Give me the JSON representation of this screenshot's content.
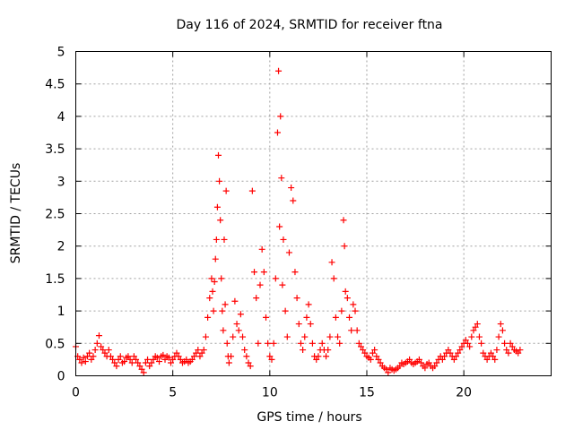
{
  "chart_data": {
    "type": "scatter",
    "title": "Day 116 of 2024, SRMTID for receiver ftna",
    "xlabel": "GPS time / hours",
    "ylabel": "SRMTID / TECUs",
    "xlim": [
      0,
      24.5
    ],
    "ylim": [
      0,
      5
    ],
    "xticks": [
      0,
      5,
      10,
      15,
      20
    ],
    "xtick_labels": [
      "0",
      "5",
      "10",
      "15",
      "20"
    ],
    "yticks": [
      0,
      0.5,
      1,
      1.5,
      2,
      2.5,
      3,
      3.5,
      4,
      4.5,
      5
    ],
    "ytick_labels": [
      "0",
      "0.5",
      "1",
      "1.5",
      "2",
      "2.5",
      "3",
      "3.5",
      "4",
      "4.5",
      "5"
    ],
    "grid": true,
    "marker": "plus",
    "color": "#ff0000",
    "series": [
      {
        "name": "SRMTID",
        "points": [
          [
            0.0,
            0.45
          ],
          [
            0.1,
            0.3
          ],
          [
            0.2,
            0.25
          ],
          [
            0.3,
            0.2
          ],
          [
            0.4,
            0.28
          ],
          [
            0.5,
            0.22
          ],
          [
            0.6,
            0.3
          ],
          [
            0.7,
            0.35
          ],
          [
            0.8,
            0.25
          ],
          [
            0.9,
            0.3
          ],
          [
            1.0,
            0.4
          ],
          [
            1.1,
            0.5
          ],
          [
            1.2,
            0.62
          ],
          [
            1.3,
            0.45
          ],
          [
            1.4,
            0.4
          ],
          [
            1.5,
            0.35
          ],
          [
            1.6,
            0.3
          ],
          [
            1.7,
            0.4
          ],
          [
            1.8,
            0.3
          ],
          [
            1.9,
            0.25
          ],
          [
            2.0,
            0.2
          ],
          [
            2.1,
            0.15
          ],
          [
            2.2,
            0.25
          ],
          [
            2.3,
            0.3
          ],
          [
            2.4,
            0.2
          ],
          [
            2.5,
            0.22
          ],
          [
            2.6,
            0.28
          ],
          [
            2.7,
            0.3
          ],
          [
            2.8,
            0.25
          ],
          [
            2.9,
            0.2
          ],
          [
            3.0,
            0.3
          ],
          [
            3.1,
            0.25
          ],
          [
            3.2,
            0.2
          ],
          [
            3.3,
            0.15
          ],
          [
            3.4,
            0.1
          ],
          [
            3.5,
            0.05
          ],
          [
            3.6,
            0.2
          ],
          [
            3.7,
            0.25
          ],
          [
            3.8,
            0.15
          ],
          [
            3.9,
            0.2
          ],
          [
            4.0,
            0.25
          ],
          [
            4.1,
            0.3
          ],
          [
            4.2,
            0.28
          ],
          [
            4.3,
            0.22
          ],
          [
            4.4,
            0.3
          ],
          [
            4.5,
            0.32
          ],
          [
            4.6,
            0.25
          ],
          [
            4.7,
            0.3
          ],
          [
            4.8,
            0.28
          ],
          [
            4.9,
            0.2
          ],
          [
            5.0,
            0.25
          ],
          [
            5.1,
            0.3
          ],
          [
            5.2,
            0.35
          ],
          [
            5.3,
            0.3
          ],
          [
            5.4,
            0.25
          ],
          [
            5.5,
            0.2
          ],
          [
            5.6,
            0.22
          ],
          [
            5.7,
            0.25
          ],
          [
            5.8,
            0.2
          ],
          [
            5.9,
            0.22
          ],
          [
            6.0,
            0.25
          ],
          [
            6.1,
            0.3
          ],
          [
            6.2,
            0.35
          ],
          [
            6.3,
            0.4
          ],
          [
            6.4,
            0.3
          ],
          [
            6.5,
            0.35
          ],
          [
            6.6,
            0.4
          ],
          [
            6.7,
            0.6
          ],
          [
            6.8,
            0.9
          ],
          [
            6.9,
            1.2
          ],
          [
            7.0,
            1.5
          ],
          [
            7.05,
            1.3
          ],
          [
            7.1,
            1.0
          ],
          [
            7.15,
            1.45
          ],
          [
            7.2,
            1.8
          ],
          [
            7.25,
            2.1
          ],
          [
            7.3,
            2.6
          ],
          [
            7.35,
            3.4
          ],
          [
            7.4,
            3.0
          ],
          [
            7.45,
            2.4
          ],
          [
            7.5,
            1.5
          ],
          [
            7.55,
            1.0
          ],
          [
            7.6,
            0.7
          ],
          [
            7.65,
            2.1
          ],
          [
            7.7,
            1.1
          ],
          [
            7.75,
            2.85
          ],
          [
            7.8,
            0.5
          ],
          [
            7.85,
            0.3
          ],
          [
            7.9,
            0.2
          ],
          [
            8.0,
            0.3
          ],
          [
            8.1,
            0.6
          ],
          [
            8.2,
            1.15
          ],
          [
            8.3,
            0.8
          ],
          [
            8.4,
            0.7
          ],
          [
            8.5,
            0.95
          ],
          [
            8.6,
            0.6
          ],
          [
            8.7,
            0.4
          ],
          [
            8.8,
            0.3
          ],
          [
            8.9,
            0.2
          ],
          [
            9.0,
            0.15
          ],
          [
            9.1,
            2.85
          ],
          [
            9.2,
            1.6
          ],
          [
            9.3,
            1.2
          ],
          [
            9.4,
            0.5
          ],
          [
            9.5,
            1.4
          ],
          [
            9.6,
            1.95
          ],
          [
            9.7,
            1.6
          ],
          [
            9.8,
            0.9
          ],
          [
            9.9,
            0.5
          ],
          [
            10.0,
            0.3
          ],
          [
            10.1,
            0.25
          ],
          [
            10.2,
            0.5
          ],
          [
            10.3,
            1.5
          ],
          [
            10.4,
            3.75
          ],
          [
            10.45,
            4.7
          ],
          [
            10.5,
            2.3
          ],
          [
            10.55,
            4.0
          ],
          [
            10.6,
            3.05
          ],
          [
            10.65,
            1.4
          ],
          [
            10.7,
            2.1
          ],
          [
            10.8,
            1.0
          ],
          [
            10.9,
            0.6
          ],
          [
            11.0,
            1.9
          ],
          [
            11.1,
            2.9
          ],
          [
            11.2,
            2.7
          ],
          [
            11.3,
            1.6
          ],
          [
            11.4,
            1.2
          ],
          [
            11.5,
            0.8
          ],
          [
            11.6,
            0.5
          ],
          [
            11.7,
            0.4
          ],
          [
            11.8,
            0.6
          ],
          [
            11.9,
            0.9
          ],
          [
            12.0,
            1.1
          ],
          [
            12.1,
            0.8
          ],
          [
            12.2,
            0.5
          ],
          [
            12.3,
            0.3
          ],
          [
            12.4,
            0.25
          ],
          [
            12.5,
            0.3
          ],
          [
            12.6,
            0.4
          ],
          [
            12.7,
            0.5
          ],
          [
            12.8,
            0.4
          ],
          [
            12.9,
            0.3
          ],
          [
            13.0,
            0.4
          ],
          [
            13.1,
            0.6
          ],
          [
            13.2,
            1.75
          ],
          [
            13.3,
            1.5
          ],
          [
            13.4,
            0.9
          ],
          [
            13.5,
            0.6
          ],
          [
            13.6,
            0.5
          ],
          [
            13.7,
            1.0
          ],
          [
            13.8,
            2.4
          ],
          [
            13.85,
            2.0
          ],
          [
            13.9,
            1.3
          ],
          [
            14.0,
            1.2
          ],
          [
            14.1,
            0.9
          ],
          [
            14.2,
            0.7
          ],
          [
            14.3,
            1.1
          ],
          [
            14.4,
            1.0
          ],
          [
            14.5,
            0.7
          ],
          [
            14.6,
            0.5
          ],
          [
            14.7,
            0.45
          ],
          [
            14.8,
            0.4
          ],
          [
            14.9,
            0.35
          ],
          [
            15.0,
            0.3
          ],
          [
            15.1,
            0.28
          ],
          [
            15.2,
            0.25
          ],
          [
            15.3,
            0.35
          ],
          [
            15.4,
            0.4
          ],
          [
            15.5,
            0.3
          ],
          [
            15.6,
            0.25
          ],
          [
            15.7,
            0.2
          ],
          [
            15.8,
            0.15
          ],
          [
            15.9,
            0.12
          ],
          [
            16.0,
            0.1
          ],
          [
            16.1,
            0.05
          ],
          [
            16.2,
            0.12
          ],
          [
            16.3,
            0.1
          ],
          [
            16.4,
            0.08
          ],
          [
            16.5,
            0.1
          ],
          [
            16.6,
            0.12
          ],
          [
            16.7,
            0.15
          ],
          [
            16.8,
            0.2
          ],
          [
            16.9,
            0.18
          ],
          [
            17.0,
            0.2
          ],
          [
            17.1,
            0.22
          ],
          [
            17.2,
            0.25
          ],
          [
            17.3,
            0.2
          ],
          [
            17.4,
            0.18
          ],
          [
            17.5,
            0.2
          ],
          [
            17.6,
            0.22
          ],
          [
            17.7,
            0.25
          ],
          [
            17.8,
            0.2
          ],
          [
            17.9,
            0.15
          ],
          [
            18.0,
            0.12
          ],
          [
            18.1,
            0.18
          ],
          [
            18.2,
            0.2
          ],
          [
            18.3,
            0.15
          ],
          [
            18.4,
            0.12
          ],
          [
            18.5,
            0.15
          ],
          [
            18.6,
            0.2
          ],
          [
            18.7,
            0.25
          ],
          [
            18.8,
            0.3
          ],
          [
            18.9,
            0.25
          ],
          [
            19.0,
            0.3
          ],
          [
            19.1,
            0.35
          ],
          [
            19.2,
            0.4
          ],
          [
            19.3,
            0.35
          ],
          [
            19.4,
            0.3
          ],
          [
            19.5,
            0.25
          ],
          [
            19.6,
            0.3
          ],
          [
            19.7,
            0.35
          ],
          [
            19.8,
            0.4
          ],
          [
            19.9,
            0.45
          ],
          [
            20.0,
            0.5
          ],
          [
            20.1,
            0.55
          ],
          [
            20.2,
            0.5
          ],
          [
            20.3,
            0.45
          ],
          [
            20.4,
            0.6
          ],
          [
            20.5,
            0.7
          ],
          [
            20.6,
            0.75
          ],
          [
            20.7,
            0.8
          ],
          [
            20.8,
            0.6
          ],
          [
            20.9,
            0.5
          ],
          [
            21.0,
            0.35
          ],
          [
            21.1,
            0.3
          ],
          [
            21.2,
            0.25
          ],
          [
            21.3,
            0.3
          ],
          [
            21.4,
            0.35
          ],
          [
            21.5,
            0.3
          ],
          [
            21.6,
            0.25
          ],
          [
            21.7,
            0.4
          ],
          [
            21.8,
            0.6
          ],
          [
            21.9,
            0.8
          ],
          [
            22.0,
            0.7
          ],
          [
            22.1,
            0.5
          ],
          [
            22.2,
            0.4
          ],
          [
            22.3,
            0.35
          ],
          [
            22.4,
            0.5
          ],
          [
            22.5,
            0.45
          ],
          [
            22.6,
            0.4
          ],
          [
            22.7,
            0.38
          ],
          [
            22.8,
            0.35
          ],
          [
            22.9,
            0.4
          ]
        ]
      }
    ]
  }
}
